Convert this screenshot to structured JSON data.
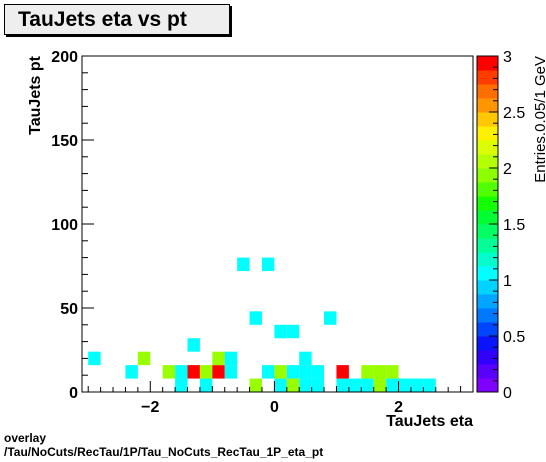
{
  "footer": {
    "line1": "overlay",
    "line2": "/Tau/NoCuts/RecTau/1P/Tau_NoCuts_RecTau_1P_eta_pt"
  },
  "chart_data": {
    "type": "heatmap",
    "title": "TauJets eta vs pt",
    "xlabel": "TauJets eta",
    "ylabel": "TauJets pt",
    "zlabel": "Entries.0.05/1 GeV",
    "xlim": [
      -3.1,
      3.2
    ],
    "ylim": [
      0,
      200
    ],
    "zlim": [
      0,
      3
    ],
    "xticks": [
      -2,
      0,
      2
    ],
    "yticks": [
      0,
      50,
      100,
      150,
      200
    ],
    "zticks": [
      0,
      0.5,
      1,
      1.5,
      2,
      2.5,
      3
    ],
    "bin_width_x": 0.2,
    "bin_width_y": 8,
    "bins": [
      {
        "x": -2.9,
        "y": 20,
        "z": 1
      },
      {
        "x": -2.3,
        "y": 12,
        "z": 1
      },
      {
        "x": -2.1,
        "y": 20,
        "z": 2
      },
      {
        "x": -1.7,
        "y": 12,
        "z": 2
      },
      {
        "x": -1.5,
        "y": 4,
        "z": 1
      },
      {
        "x": -1.5,
        "y": 12,
        "z": 1
      },
      {
        "x": -1.3,
        "y": 12,
        "z": 3
      },
      {
        "x": -1.3,
        "y": 28,
        "z": 1
      },
      {
        "x": -1.1,
        "y": 4,
        "z": 1
      },
      {
        "x": -1.1,
        "y": 12,
        "z": 2
      },
      {
        "x": -0.9,
        "y": 12,
        "z": 3
      },
      {
        "x": -0.9,
        "y": 20,
        "z": 2
      },
      {
        "x": -0.7,
        "y": 12,
        "z": 1
      },
      {
        "x": -0.7,
        "y": 20,
        "z": 1
      },
      {
        "x": -0.5,
        "y": 76,
        "z": 1
      },
      {
        "x": -0.3,
        "y": 4,
        "z": 2
      },
      {
        "x": -0.3,
        "y": 44,
        "z": 1
      },
      {
        "x": -0.1,
        "y": 12,
        "z": 1
      },
      {
        "x": -0.1,
        "y": 76,
        "z": 1
      },
      {
        "x": 0.1,
        "y": 4,
        "z": 1
      },
      {
        "x": 0.1,
        "y": 12,
        "z": 2
      },
      {
        "x": 0.1,
        "y": 36,
        "z": 1
      },
      {
        "x": 0.3,
        "y": 4,
        "z": 2
      },
      {
        "x": 0.3,
        "y": 12,
        "z": 1
      },
      {
        "x": 0.3,
        "y": 36,
        "z": 1
      },
      {
        "x": 0.5,
        "y": 4,
        "z": 1
      },
      {
        "x": 0.5,
        "y": 12,
        "z": 1
      },
      {
        "x": 0.5,
        "y": 20,
        "z": 1
      },
      {
        "x": 0.7,
        "y": 4,
        "z": 1
      },
      {
        "x": 0.7,
        "y": 12,
        "z": 1
      },
      {
        "x": 0.9,
        "y": 44,
        "z": 1
      },
      {
        "x": 1.1,
        "y": 4,
        "z": 1
      },
      {
        "x": 1.1,
        "y": 12,
        "z": 3
      },
      {
        "x": 1.3,
        "y": 4,
        "z": 1
      },
      {
        "x": 1.5,
        "y": 4,
        "z": 1
      },
      {
        "x": 1.5,
        "y": 12,
        "z": 2
      },
      {
        "x": 1.7,
        "y": 4,
        "z": 2
      },
      {
        "x": 1.7,
        "y": 12,
        "z": 2
      },
      {
        "x": 1.9,
        "y": 4,
        "z": 1
      },
      {
        "x": 1.9,
        "y": 12,
        "z": 2
      },
      {
        "x": 2.1,
        "y": 4,
        "z": 1
      },
      {
        "x": 2.3,
        "y": 4,
        "z": 1
      },
      {
        "x": 2.5,
        "y": 4,
        "z": 1
      }
    ],
    "palette": [
      "#7f00ff",
      "#5a00ff",
      "#3200ff",
      "#0a14ff",
      "#0046ff",
      "#0078ff",
      "#00a5ff",
      "#00d2ff",
      "#00ffff",
      "#00ffcc",
      "#00ff96",
      "#00ff64",
      "#00ff32",
      "#14ff00",
      "#50ff00",
      "#8cff00",
      "#b4ff00",
      "#dcff00",
      "#fff000",
      "#ffc800",
      "#ff9600",
      "#ff6e00",
      "#ff3c00",
      "#ff0000"
    ],
    "colors": {
      "z1": "#00ffff",
      "z2": "#99ff00",
      "z3": "#ff0000"
    }
  }
}
